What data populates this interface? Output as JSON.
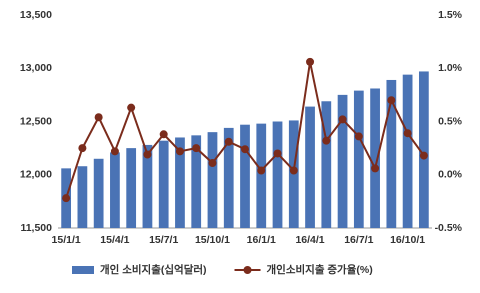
{
  "chart_data": {
    "type": "combo",
    "categories": [
      "15/1/1",
      null,
      null,
      "15/4/1",
      null,
      null,
      "15/7/1",
      null,
      null,
      "15/10/1",
      null,
      null,
      "16/1/1",
      null,
      null,
      "16/4/1",
      null,
      null,
      "16/7/1",
      null,
      null,
      "16/10/1",
      null
    ],
    "series": [
      {
        "name": "개인 소비지출(십억달러)",
        "type": "bar",
        "color": "#4a73b5",
        "values": [
          12060,
          12080,
          12150,
          12210,
          12250,
          12280,
          12320,
          12350,
          12370,
          12400,
          12440,
          12470,
          12480,
          12500,
          12510,
          12640,
          12690,
          12750,
          12790,
          12810,
          12890,
          12940,
          12970
        ]
      },
      {
        "name": "개인소비지출 증가율(%)",
        "type": "line",
        "axis": "y2",
        "color": "#7b2c1c",
        "values": [
          -0.22,
          0.25,
          0.54,
          0.22,
          0.63,
          0.19,
          0.38,
          0.22,
          0.25,
          0.11,
          0.31,
          0.24,
          0.04,
          0.2,
          0.04,
          1.06,
          0.32,
          0.52,
          0.36,
          0.06,
          0.7,
          0.39,
          0.18
        ]
      }
    ],
    "ylim": [
      11500,
      13500
    ],
    "yticks": [
      {
        "value": 11500,
        "label": "11,500"
      },
      {
        "value": 12000,
        "label": "12,000"
      },
      {
        "value": 12500,
        "label": "12,500"
      },
      {
        "value": 13000,
        "label": "13,000"
      },
      {
        "value": 13500,
        "label": "13,500"
      }
    ],
    "y2lim": [
      -0.5,
      1.5
    ],
    "y2ticks": [
      {
        "value": -0.5,
        "label": "-0.5%"
      },
      {
        "value": 0,
        "label": "0.0%"
      },
      {
        "value": 0.5,
        "label": "0.5%"
      },
      {
        "value": 1,
        "label": "1.0%"
      },
      {
        "value": 1.5,
        "label": "1.5%"
      }
    ],
    "grid": false,
    "legend": "bottom"
  }
}
